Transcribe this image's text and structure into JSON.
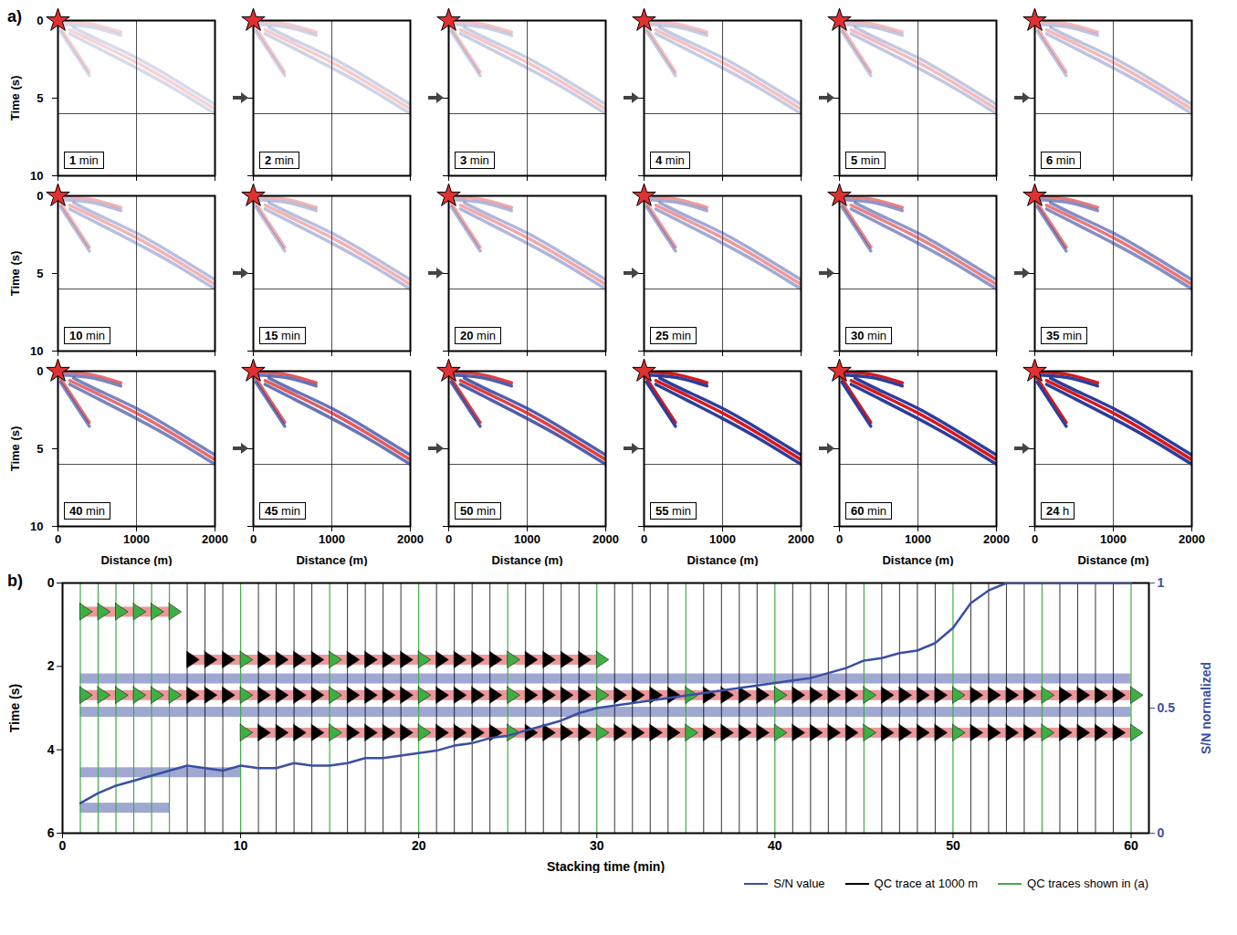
{
  "chart_data": [
    {
      "type": "gather_grid",
      "panel_label": "a)",
      "xlabel": "Distance (m)",
      "ylabel": "Time (s)",
      "xlim": [
        0,
        2000
      ],
      "xticks": [
        0,
        1000,
        2000
      ],
      "ylim": [
        0,
        10
      ],
      "yticks": [
        0,
        5,
        10
      ],
      "source": {
        "distance": 0,
        "time": 0,
        "color": "#e03030",
        "marker": "star"
      },
      "qc_distance": 1000,
      "qc_time": 6,
      "events": [
        {
          "color": "#2c3e9c",
          "points": [
            [
              200,
              0.45
            ],
            [
              500,
              1.2
            ],
            [
              1000,
              2.4
            ],
            [
              1500,
              3.85
            ],
            [
              2000,
              5.4
            ]
          ]
        },
        {
          "color": "#d7191c",
          "points": [
            [
              150,
              0.6
            ],
            [
              500,
              1.45
            ],
            [
              1000,
              2.7
            ],
            [
              1500,
              4.15
            ],
            [
              2000,
              5.7
            ]
          ]
        },
        {
          "color": "#2c3e9c",
          "points": [
            [
              150,
              0.85
            ],
            [
              500,
              1.75
            ],
            [
              1000,
              3.05
            ],
            [
              1500,
              4.45
            ],
            [
              2000,
              6.0
            ]
          ]
        },
        {
          "color": "#d7191c",
          "points": [
            [
              30,
              0.45
            ],
            [
              400,
              3.3
            ]
          ]
        },
        {
          "color": "#2c3e9c",
          "points": [
            [
              30,
              0.7
            ],
            [
              400,
              3.55
            ]
          ]
        },
        {
          "color": "#d7191c",
          "points": [
            [
              0,
              0.05
            ],
            [
              400,
              0.2
            ],
            [
              800,
              0.75
            ]
          ]
        },
        {
          "color": "#2c3e9c",
          "points": [
            [
              0,
              0.25
            ],
            [
              400,
              0.4
            ],
            [
              800,
              0.95
            ]
          ]
        }
      ],
      "panels": [
        {
          "value": 1,
          "unit": "min",
          "sn": 0.12
        },
        {
          "value": 2,
          "unit": "min",
          "sn": 0.16
        },
        {
          "value": 3,
          "unit": "min",
          "sn": 0.19
        },
        {
          "value": 4,
          "unit": "min",
          "sn": 0.21
        },
        {
          "value": 5,
          "unit": "min",
          "sn": 0.23
        },
        {
          "value": 6,
          "unit": "min",
          "sn": 0.25
        },
        {
          "value": 10,
          "unit": "min",
          "sn": 0.27
        },
        {
          "value": 15,
          "unit": "min",
          "sn": 0.27
        },
        {
          "value": 20,
          "unit": "min",
          "sn": 0.32
        },
        {
          "value": 25,
          "unit": "min",
          "sn": 0.39
        },
        {
          "value": 30,
          "unit": "min",
          "sn": 0.5
        },
        {
          "value": 35,
          "unit": "min",
          "sn": 0.55
        },
        {
          "value": 40,
          "unit": "min",
          "sn": 0.6
        },
        {
          "value": 45,
          "unit": "min",
          "sn": 0.69
        },
        {
          "value": 50,
          "unit": "min",
          "sn": 0.82
        },
        {
          "value": 55,
          "unit": "min",
          "sn": 1.0
        },
        {
          "value": 60,
          "unit": "min",
          "sn": 1.0
        },
        {
          "value": 24,
          "unit": "h",
          "sn": 1.0
        }
      ]
    },
    {
      "type": "qc_traces",
      "panel_label": "b)",
      "xlabel": "Stacking time (min)",
      "ylabel": "Time (s)",
      "y2label": "S/N normalized",
      "xlim": [
        0,
        61
      ],
      "xticks": [
        0,
        10,
        20,
        30,
        40,
        50,
        60
      ],
      "ylim": [
        0,
        6
      ],
      "yticks": [
        0,
        2,
        4,
        6
      ],
      "y2lim": [
        0,
        1
      ],
      "y2ticks": [
        0,
        0.5,
        1
      ],
      "legend": "bottom",
      "arrivals": [
        {
          "time": 0.7,
          "sign": 1,
          "from": 1,
          "to": 6,
          "color": "#d7191c"
        },
        {
          "time": 1.85,
          "sign": 1,
          "from": 7,
          "to": 30,
          "color": "#d7191c"
        },
        {
          "time": 2.3,
          "sign": -1,
          "from": 1,
          "to": 60,
          "color": "#2c3e9c"
        },
        {
          "time": 2.7,
          "sign": 1,
          "from": 1,
          "to": 60,
          "color": "#d7191c"
        },
        {
          "time": 3.1,
          "sign": -1,
          "from": 1,
          "to": 60,
          "color": "#2c3e9c"
        },
        {
          "time": 3.6,
          "sign": 1,
          "from": 10,
          "to": 60,
          "color": "#d7191c"
        },
        {
          "time": 4.55,
          "sign": -1,
          "from": 1,
          "to": 10,
          "color": "#2c3e9c"
        },
        {
          "time": 5.4,
          "sign": -1,
          "from": 1,
          "to": 6,
          "color": "#2c3e9c"
        }
      ],
      "series": [
        {
          "name": "S/N value",
          "color": "#3a4fa3",
          "axis": "y2",
          "type": "line",
          "x": [
            1,
            2,
            3,
            4,
            5,
            6,
            7,
            8,
            9,
            10,
            11,
            12,
            13,
            14,
            15,
            16,
            17,
            18,
            19,
            20,
            21,
            22,
            23,
            24,
            25,
            26,
            27,
            28,
            29,
            30,
            31,
            32,
            33,
            34,
            35,
            36,
            37,
            38,
            39,
            40,
            41,
            42,
            43,
            44,
            45,
            46,
            47,
            48,
            49,
            50,
            51,
            52,
            53,
            54,
            55,
            56,
            57,
            58,
            59,
            60
          ],
          "values": [
            0.12,
            0.16,
            0.19,
            0.21,
            0.23,
            0.25,
            0.27,
            0.26,
            0.25,
            0.27,
            0.26,
            0.26,
            0.28,
            0.27,
            0.27,
            0.28,
            0.3,
            0.3,
            0.31,
            0.32,
            0.33,
            0.35,
            0.36,
            0.38,
            0.39,
            0.41,
            0.43,
            0.45,
            0.48,
            0.5,
            0.51,
            0.52,
            0.53,
            0.54,
            0.55,
            0.56,
            0.57,
            0.58,
            0.59,
            0.6,
            0.61,
            0.62,
            0.64,
            0.66,
            0.69,
            0.7,
            0.72,
            0.73,
            0.76,
            0.82,
            0.92,
            0.97,
            1.0,
            1.0,
            1.0,
            1.0,
            1.0,
            1.0,
            1.0,
            1.0
          ]
        },
        {
          "name": "QC trace at 1000 m",
          "color": "#000000",
          "type": "trace",
          "x": [
            1,
            2,
            3,
            4,
            5,
            6,
            7,
            8,
            9,
            10,
            11,
            12,
            13,
            14,
            15,
            16,
            17,
            18,
            19,
            20,
            21,
            22,
            23,
            24,
            25,
            26,
            27,
            28,
            29,
            30,
            31,
            32,
            33,
            34,
            35,
            36,
            37,
            38,
            39,
            40,
            41,
            42,
            43,
            44,
            45,
            46,
            47,
            48,
            49,
            50,
            51,
            52,
            53,
            54,
            55,
            56,
            57,
            58,
            59,
            60
          ]
        },
        {
          "name": "QC traces shown in (a)",
          "color": "#3cb043",
          "type": "trace",
          "x": [
            1,
            2,
            3,
            4,
            5,
            6,
            10,
            15,
            20,
            25,
            30,
            35,
            40,
            45,
            50,
            55,
            60
          ]
        }
      ]
    }
  ]
}
